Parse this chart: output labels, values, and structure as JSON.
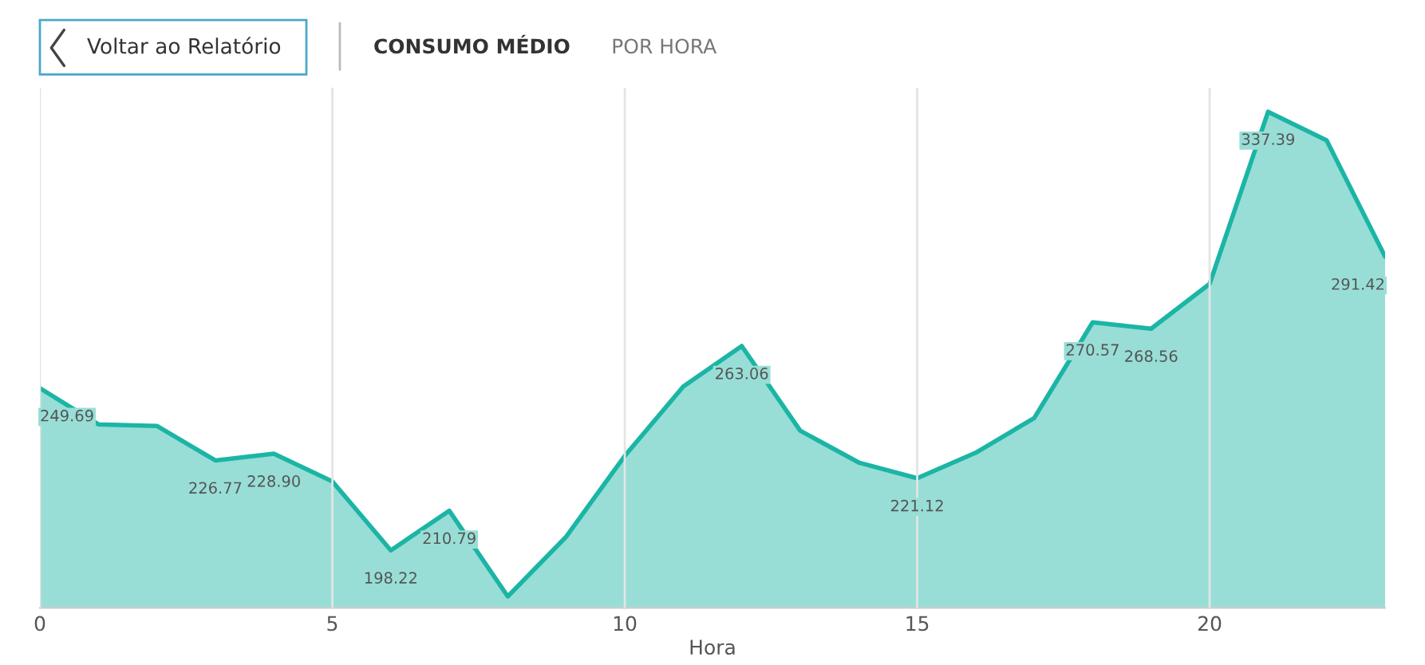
{
  "chart_data": {
    "type": "area",
    "title": "CONSUMO MÉDIO",
    "subtitle": "POR HORA",
    "xlabel": "Hora",
    "annotations": [
      "Voltar ao Relatório"
    ],
    "x": [
      0,
      1,
      2,
      3,
      4,
      5,
      6,
      7,
      8,
      9,
      10,
      11,
      12,
      13,
      14,
      15,
      16,
      17,
      18,
      19,
      20,
      21,
      22,
      23
    ],
    "series": [
      {
        "color": "#1bb5a5",
        "values": [
          249.69,
          238.2,
          237.7,
          226.77,
          228.9,
          220.1,
          198.22,
          210.79,
          183.6,
          202.6,
          228.2,
          250.2,
          263.06,
          236.2,
          226.1,
          221.12,
          229.2,
          240.2,
          270.57,
          268.56,
          282.8,
          337.39,
          328.3,
          291.42
        ],
        "value_labels": [
          "249.69",
          null,
          null,
          "226.77",
          "228.90",
          null,
          "198.22",
          "210.79",
          null,
          null,
          null,
          null,
          "263.06",
          null,
          null,
          "221.12",
          null,
          null,
          "270.57",
          "268.56",
          null,
          "337.39",
          null,
          "291.42"
        ]
      }
    ],
    "xlim": [
      0,
      23
    ],
    "xticks": [
      0,
      5,
      10,
      15,
      20
    ],
    "ylim": [
      180,
      345
    ],
    "tick_labels": "x",
    "grid": "x",
    "legend": false,
    "marker": "none",
    "line_style": "solid"
  }
}
